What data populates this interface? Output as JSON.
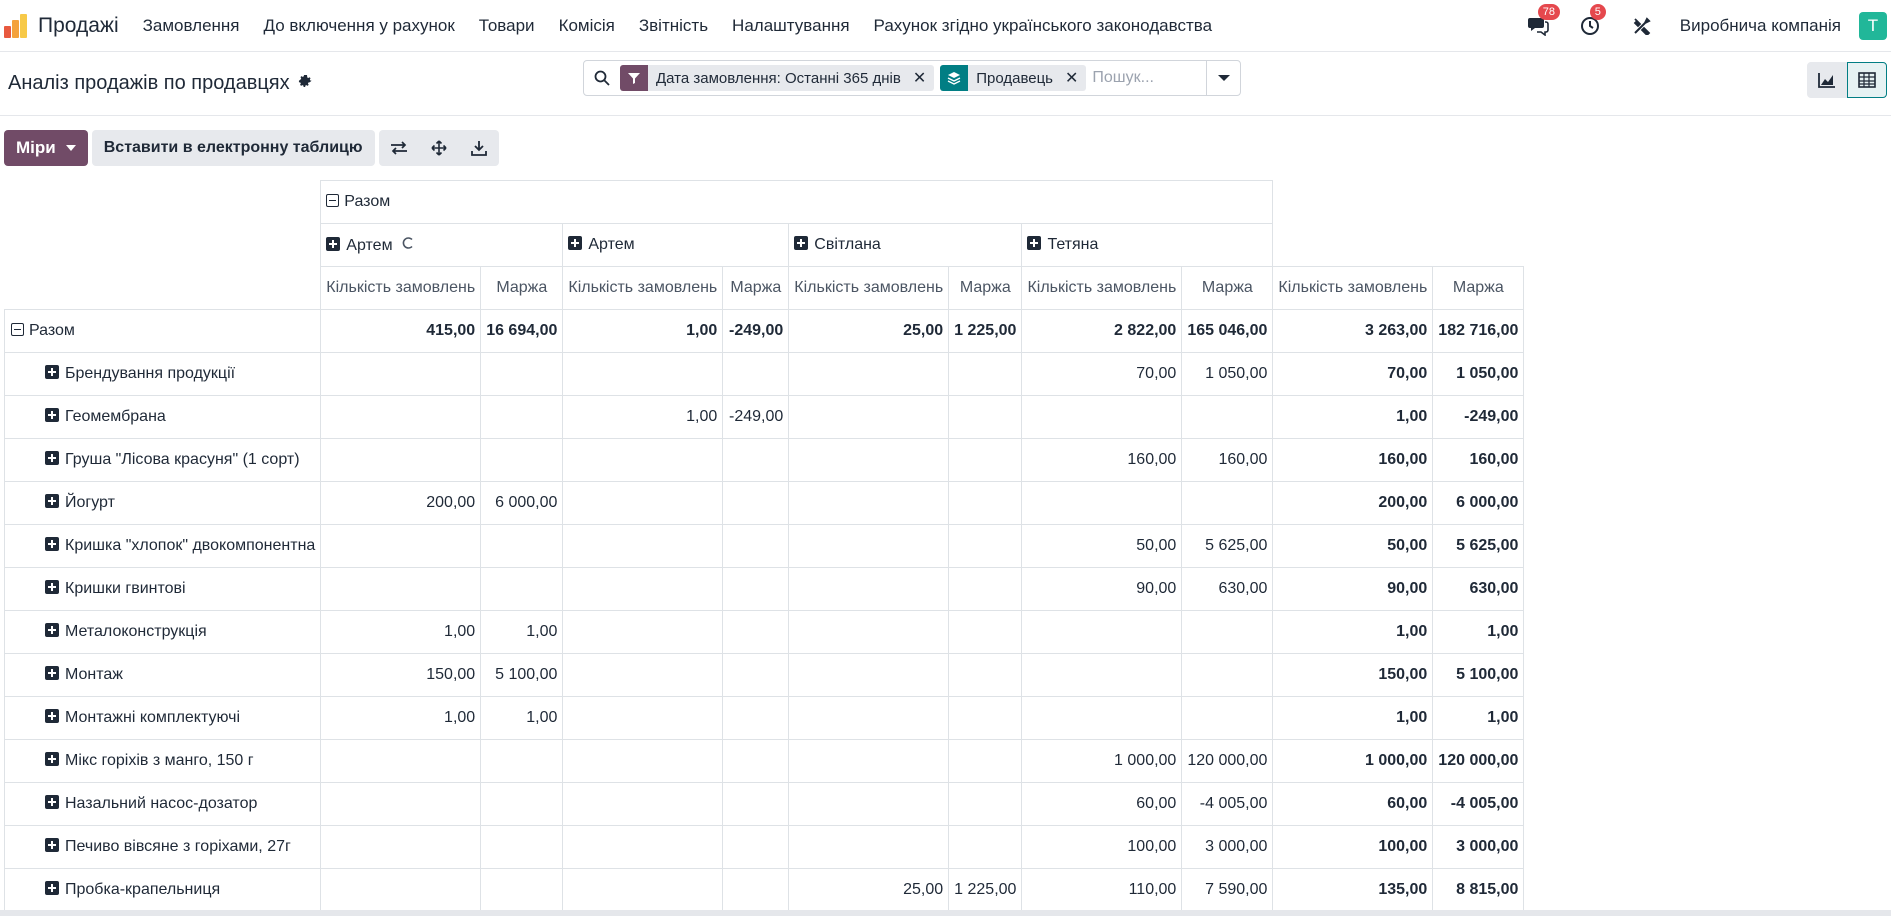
{
  "navbar": {
    "app_name": "Продажі",
    "menu": [
      "Замовлення",
      "До включення у рахунок",
      "Товари",
      "Комісія",
      "Звітність",
      "Налаштування",
      "Рахунок згідно українського законодавства"
    ],
    "messages_count": "78",
    "activities_count": "5",
    "company": "Виробнича компанія",
    "avatar_letter": "T",
    "avatar_color": "#21b799"
  },
  "control_panel": {
    "title": "Аналіз продажів по продавцях",
    "facets": [
      {
        "icon": "filter-icon",
        "label": "Дата замовлення: Останні 365 днів",
        "color": "#714b67"
      },
      {
        "icon": "layers-icon",
        "label": "Продавець",
        "color": "#017e84"
      }
    ],
    "search_placeholder": "Пошук..."
  },
  "action_bar": {
    "measures_label": "Міри",
    "insert_label": "Вставити в електронну таблицю"
  },
  "pivot": {
    "col_total_label": "Разом",
    "col_groups": [
      "Артем",
      "Артем",
      "Світлана",
      "Тетяна"
    ],
    "measure_labels": [
      "Кількість замовлень",
      "Маржа"
    ],
    "row_total_label": "Разом",
    "total_row": [
      "415,00",
      "16 694,00",
      "1,00",
      "-249,00",
      "25,00",
      "1 225,00",
      "2 822,00",
      "165 046,00",
      "3 263,00",
      "182 716,00"
    ],
    "rows": [
      {
        "label": "Брендування продукції",
        "cells": [
          "",
          "",
          "",
          "",
          "",
          "",
          "70,00",
          "1 050,00",
          "70,00",
          "1 050,00"
        ]
      },
      {
        "label": "Геомембрана",
        "cells": [
          "",
          "",
          "1,00",
          "-249,00",
          "",
          "",
          "",
          "",
          "1,00",
          "-249,00"
        ]
      },
      {
        "label": "Груша \"Лісова красуня\" (1 сорт)",
        "cells": [
          "",
          "",
          "",
          "",
          "",
          "",
          "160,00",
          "160,00",
          "160,00",
          "160,00"
        ]
      },
      {
        "label": "Йогурт",
        "cells": [
          "200,00",
          "6 000,00",
          "",
          "",
          "",
          "",
          "",
          "",
          "200,00",
          "6 000,00"
        ]
      },
      {
        "label": "Кришка \"хлопок\" двокомпонентна",
        "cells": [
          "",
          "",
          "",
          "",
          "",
          "",
          "50,00",
          "5 625,00",
          "50,00",
          "5 625,00"
        ]
      },
      {
        "label": "Кришки гвинтові",
        "cells": [
          "",
          "",
          "",
          "",
          "",
          "",
          "90,00",
          "630,00",
          "90,00",
          "630,00"
        ]
      },
      {
        "label": "Металоконструкція",
        "cells": [
          "1,00",
          "1,00",
          "",
          "",
          "",
          "",
          "",
          "",
          "1,00",
          "1,00"
        ]
      },
      {
        "label": "Монтаж",
        "cells": [
          "150,00",
          "5 100,00",
          "",
          "",
          "",
          "",
          "",
          "",
          "150,00",
          "5 100,00"
        ]
      },
      {
        "label": "Монтажні комплектуючі",
        "cells": [
          "1,00",
          "1,00",
          "",
          "",
          "",
          "",
          "",
          "",
          "1,00",
          "1,00"
        ]
      },
      {
        "label": "Мікс горіхів з манго, 150 г",
        "cells": [
          "",
          "",
          "",
          "",
          "",
          "",
          "1 000,00",
          "120 000,00",
          "1 000,00",
          "120 000,00"
        ]
      },
      {
        "label": "Назальний насос-дозатор",
        "cells": [
          "",
          "",
          "",
          "",
          "",
          "",
          "60,00",
          "-4 005,00",
          "60,00",
          "-4 005,00"
        ]
      },
      {
        "label": "Печиво вівсяне з горіхами, 27г",
        "cells": [
          "",
          "",
          "",
          "",
          "",
          "",
          "100,00",
          "3 000,00",
          "100,00",
          "3 000,00"
        ]
      },
      {
        "label": "Пробка-крапельниця",
        "cells": [
          "",
          "",
          "",
          "",
          "25,00",
          "1 225,00",
          "110,00",
          "7 590,00",
          "135,00",
          "8 815,00"
        ]
      }
    ]
  }
}
